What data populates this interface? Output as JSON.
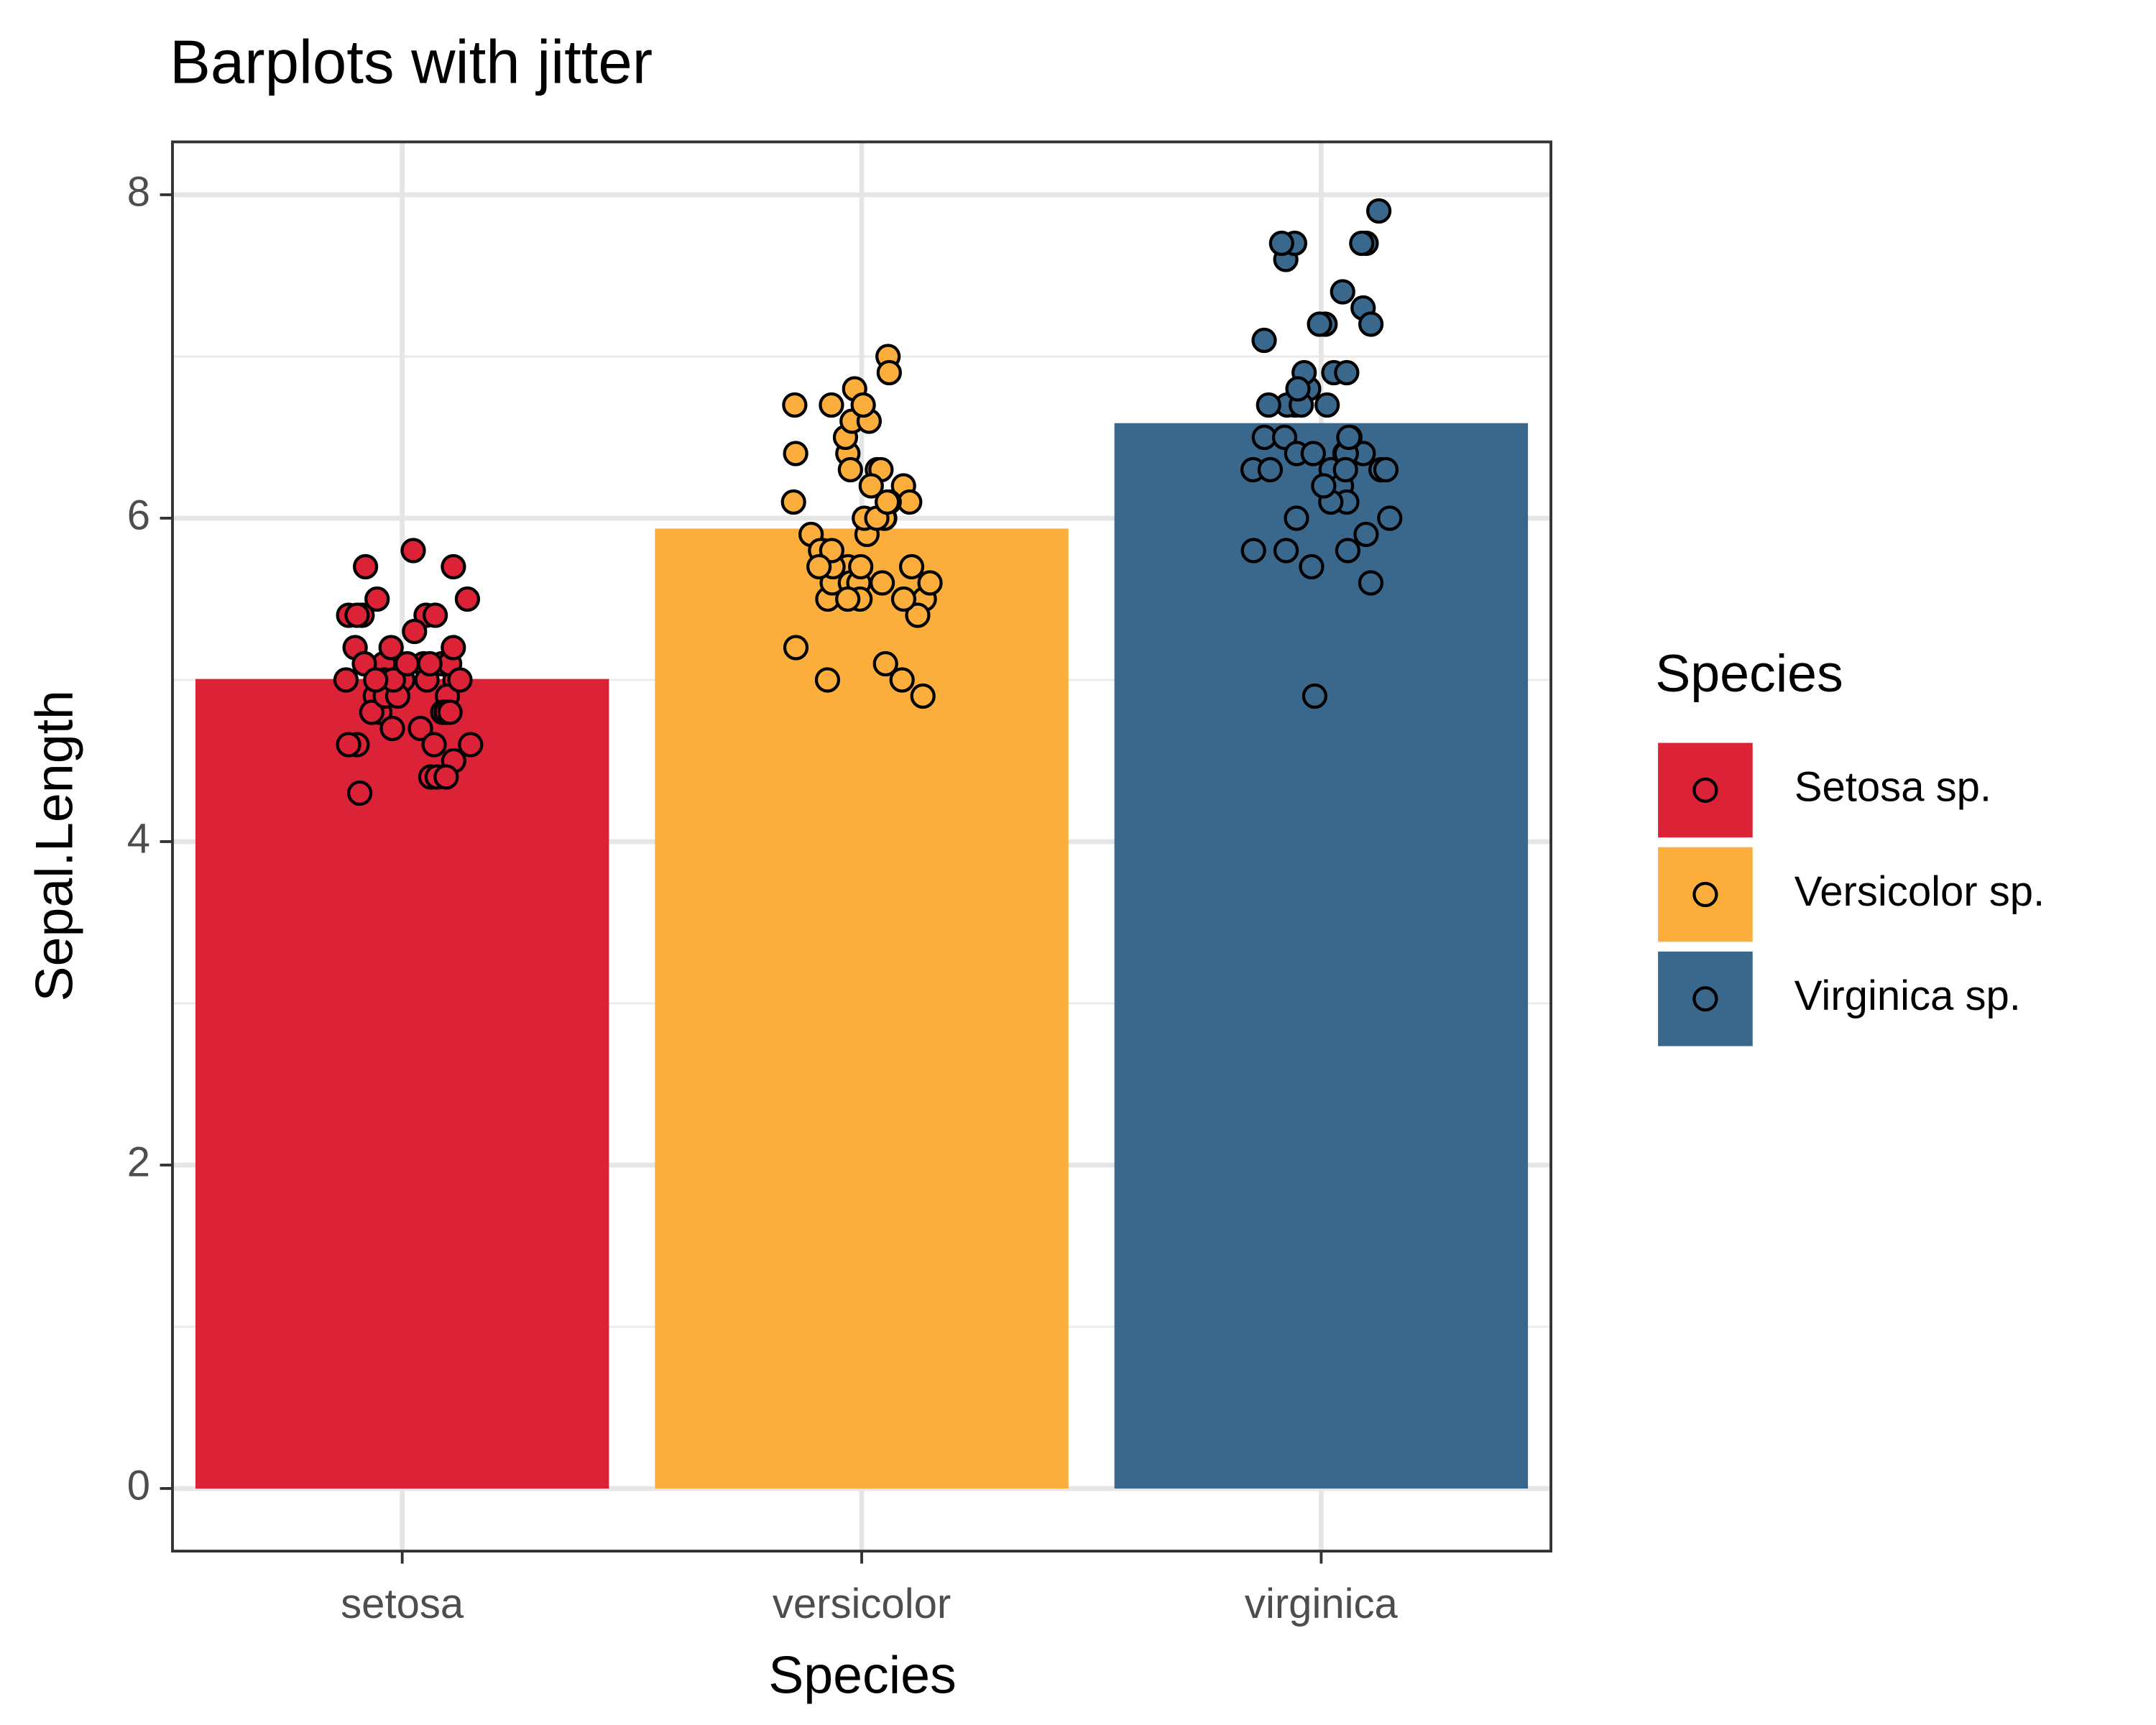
{
  "chart_data": {
    "type": "bar",
    "title": "Barplots with jitter",
    "x_label": "Species",
    "y_label": "Sepal.Length",
    "categories": [
      "setosa",
      "versicolor",
      "virginica"
    ],
    "values": [
      5.006,
      5.936,
      6.588
    ],
    "colors": [
      "#dc2237",
      "#fbae3c",
      "#3a678c"
    ],
    "legend_title": "Species",
    "legend_labels": [
      "Setosa sp.",
      "Versicolor sp.",
      "Virginica sp."
    ],
    "legend_position": "right",
    "points": [
      [
        5.1,
        4.9,
        4.7,
        4.6,
        5.0,
        5.4,
        4.6,
        5.0,
        4.4,
        4.9,
        5.4,
        4.8,
        4.8,
        4.3,
        5.8,
        5.7,
        5.4,
        5.1,
        5.7,
        5.1,
        5.4,
        5.1,
        4.6,
        5.1,
        4.8,
        5.0,
        5.0,
        5.2,
        5.2,
        4.7,
        4.8,
        5.4,
        5.2,
        5.5,
        4.9,
        5.0,
        5.5,
        4.9,
        4.4,
        5.1,
        5.0,
        4.5,
        4.4,
        5.0,
        5.1,
        4.8,
        5.1,
        4.6,
        5.3,
        5.0
      ],
      [
        7.0,
        6.4,
        6.9,
        5.5,
        6.5,
        5.7,
        6.3,
        4.9,
        6.6,
        5.2,
        5.0,
        5.9,
        6.0,
        6.1,
        5.6,
        6.7,
        5.6,
        5.8,
        6.2,
        5.6,
        5.9,
        6.1,
        6.3,
        6.1,
        6.4,
        6.6,
        6.8,
        6.7,
        6.0,
        5.7,
        5.5,
        5.5,
        5.8,
        6.0,
        5.4,
        6.0,
        6.7,
        6.3,
        5.6,
        5.5,
        5.5,
        6.1,
        5.8,
        5.0,
        5.6,
        5.7,
        5.7,
        6.2,
        5.1,
        5.7
      ],
      [
        6.3,
        5.8,
        7.1,
        6.3,
        6.5,
        7.6,
        4.9,
        7.3,
        6.7,
        7.2,
        6.5,
        6.4,
        6.8,
        5.7,
        5.8,
        6.4,
        6.5,
        7.7,
        7.7,
        6.0,
        6.9,
        5.6,
        7.7,
        6.3,
        6.7,
        7.2,
        6.2,
        6.1,
        6.4,
        7.2,
        7.4,
        7.9,
        6.4,
        6.3,
        6.1,
        7.7,
        6.3,
        6.4,
        6.0,
        6.9,
        6.7,
        6.9,
        5.8,
        6.8,
        6.7,
        6.7,
        6.3,
        6.5,
        6.2,
        5.9
      ]
    ],
    "ylim": [
      -0.387,
      8.327
    ],
    "yticks": [
      0,
      2,
      4,
      6,
      8
    ],
    "minor_yticks": [
      1,
      3,
      5,
      7
    ],
    "grid": true
  }
}
